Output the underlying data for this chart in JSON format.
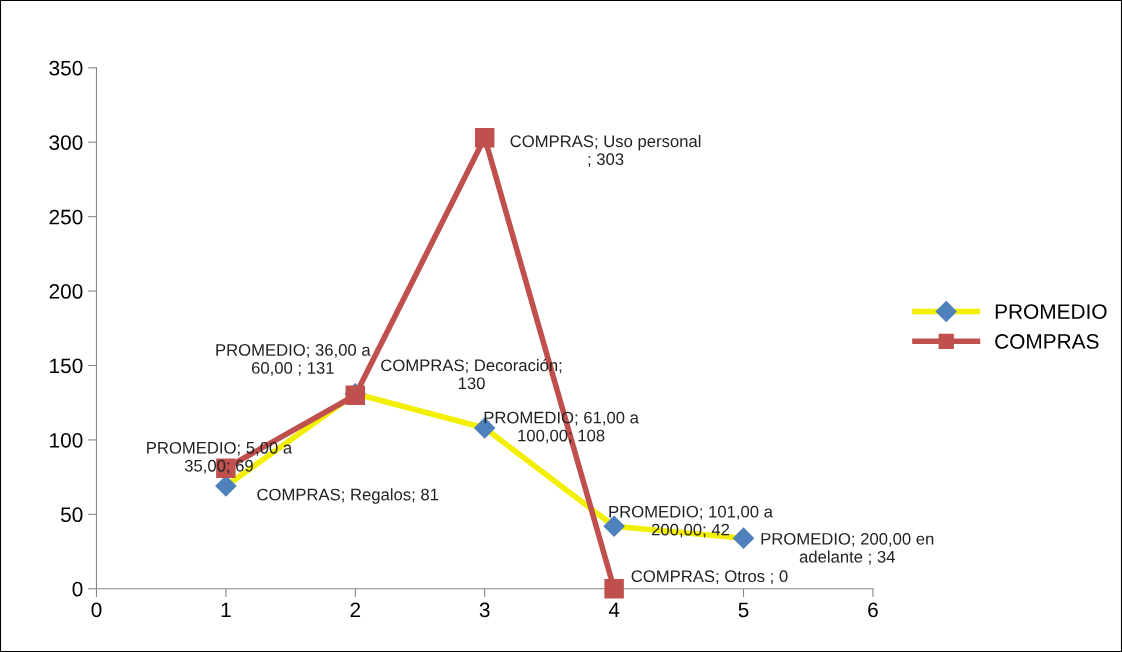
{
  "chart_data": {
    "type": "line",
    "x": [
      1,
      2,
      3,
      4,
      5
    ],
    "series": [
      {
        "name": "PROMEDIO",
        "color": "#f2ef00",
        "colors": [
          "#4f81bd",
          "#4f81bd",
          "#4f81bd",
          "#4f81bd",
          "#4f81bd"
        ],
        "marker": "diamond",
        "values": [
          69,
          131,
          108,
          42,
          34
        ],
        "value_labels": [
          "PROMEDIO; 5,00 a\n35,00; 69",
          "PROMEDIO; 36,00 a\n60,00 ; 131",
          "PROMEDIO; 61,00 a\n100,00; 108",
          "PROMEDIO; 101,00 a\n200,00; 42",
          "PROMEDIO; 200,00 en\nadelante ; 34"
        ]
      },
      {
        "name": "COMPRAS",
        "color": "#c0504d",
        "colors": [
          "#c0504d",
          "#c0504d",
          "#c0504d",
          "#c0504d"
        ],
        "marker": "square",
        "x": [
          1,
          2,
          3,
          4
        ],
        "values": [
          81,
          130,
          303,
          0
        ],
        "value_labels": [
          "COMPRAS; Regalos; 81",
          "COMPRAS; Decoración;\n130",
          "COMPRAS; Uso personal\n; 303",
          "COMPRAS; Otros ; 0"
        ]
      }
    ],
    "xlim": [
      0,
      6
    ],
    "xticks": [
      0,
      1,
      2,
      3,
      4,
      5,
      6
    ],
    "ylim": [
      0,
      350
    ],
    "yticks": [
      0,
      50,
      100,
      150,
      200,
      250,
      300,
      350
    ],
    "grid": false,
    "legend": "right"
  }
}
